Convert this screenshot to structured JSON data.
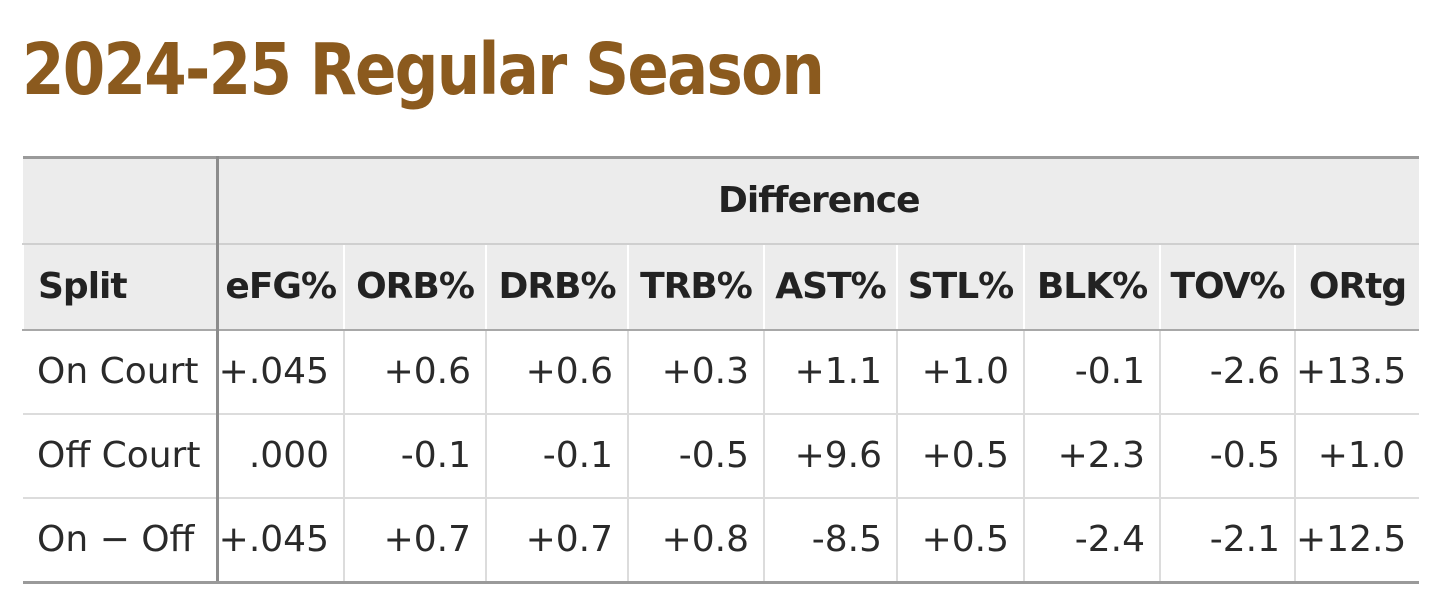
{
  "title": "2024-25 Regular Season",
  "colors": {
    "title": "#8b5a1e",
    "header_bg": "#ececec",
    "text": "#222222"
  },
  "table": {
    "group_header": "Difference",
    "columns": [
      "Split",
      "eFG%",
      "ORB%",
      "DRB%",
      "TRB%",
      "AST%",
      "STL%",
      "BLK%",
      "TOV%",
      "ORtg"
    ],
    "rows": [
      {
        "split": "On Court",
        "values": [
          "+.045",
          "+0.6",
          "+0.6",
          "+0.3",
          "+1.1",
          "+1.0",
          "-0.1",
          "-2.6",
          "+13.5"
        ]
      },
      {
        "split": "Off Court",
        "values": [
          ".000",
          "-0.1",
          "-0.1",
          "-0.5",
          "+9.6",
          "+0.5",
          "+2.3",
          "-0.5",
          "+1.0"
        ]
      },
      {
        "split": "On − Off",
        "values": [
          "+.045",
          "+0.7",
          "+0.7",
          "+0.8",
          "-8.5",
          "+0.5",
          "-2.4",
          "-2.1",
          "+12.5"
        ]
      }
    ]
  }
}
